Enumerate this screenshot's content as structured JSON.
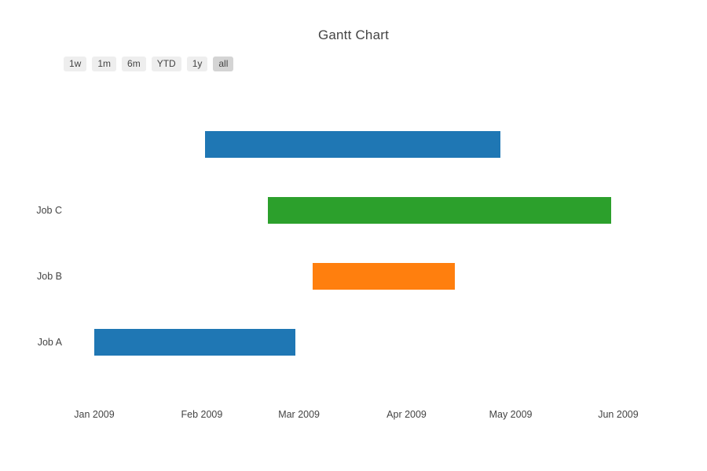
{
  "title": "Gantt Chart",
  "colors": {
    "background": "#ffffff",
    "text": "#444444",
    "bar_blue": "#1f77b4",
    "bar_orange": "#ff7f0e",
    "bar_green": "#2ca02c",
    "button_bg": "#eeeeee",
    "button_active_bg": "#d4d4d4"
  },
  "range_selector": {
    "buttons": [
      {
        "label": "1w",
        "active": false
      },
      {
        "label": "1m",
        "active": false
      },
      {
        "label": "6m",
        "active": false
      },
      {
        "label": "YTD",
        "active": false
      },
      {
        "label": "1y",
        "active": false
      },
      {
        "label": "all",
        "active": true
      }
    ]
  },
  "chart_data": {
    "type": "gantt",
    "title": "Gantt Chart",
    "x_axis": {
      "type": "date",
      "ticks": [
        {
          "label": "Jan 2009",
          "date": "2009-01-01"
        },
        {
          "label": "Feb 2009",
          "date": "2009-02-01"
        },
        {
          "label": "Mar 2009",
          "date": "2009-03-01"
        },
        {
          "label": "Apr 2009",
          "date": "2009-04-01"
        },
        {
          "label": "May 2009",
          "date": "2009-05-01"
        },
        {
          "label": "Jun 2009",
          "date": "2009-06-01"
        }
      ],
      "grid": false
    },
    "y_axis": {
      "tick_labels_bottom_to_top": [
        "Job A",
        "Job B",
        "Job C",
        ""
      ],
      "grid": false
    },
    "tasks": [
      {
        "label": "Job A",
        "start": "2009-01-01",
        "finish": "2009-02-28",
        "color": "#1f77b4",
        "row": 0
      },
      {
        "label": "Job B",
        "start": "2009-03-05",
        "finish": "2009-04-15",
        "color": "#ff7f0e",
        "row": 1
      },
      {
        "label": "Job C",
        "start": "2009-02-20",
        "finish": "2009-05-30",
        "color": "#2ca02c",
        "row": 2
      },
      {
        "label": "",
        "start": "2009-02-02",
        "finish": "2009-04-28",
        "color": "#1f77b4",
        "row": 3
      }
    ]
  }
}
